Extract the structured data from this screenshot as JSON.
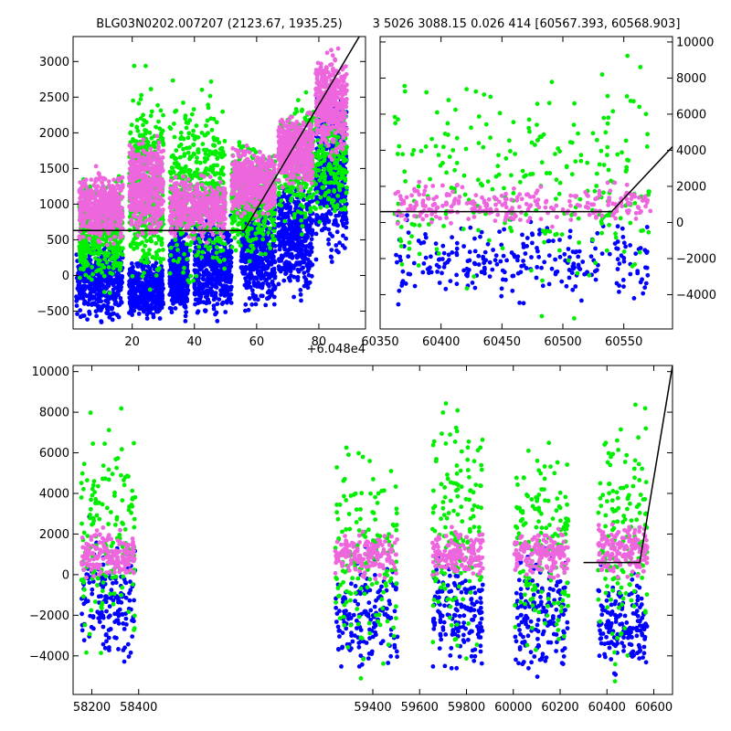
{
  "figure": {
    "title_left": "BLG03N0202.007207 (2123.67, 1935.25)",
    "title_right": "3 5026 3088.15 0.026 414 [60567.393, 60568.903]"
  },
  "colors": {
    "series_blue": "#0000ff",
    "series_green": "#00ee00",
    "series_pink": "#ee66dd",
    "model_line": "#000000"
  },
  "chart_data": [
    {
      "type": "scatter",
      "panel": "top-left",
      "title": "BLG03N0202.007207 (2123.67, 1935.25)",
      "xlim": [
        1,
        95
      ],
      "ylim": [
        -750,
        3350
      ],
      "x_offset_label": "+6.048e4",
      "xticks": [
        20,
        40,
        60,
        80
      ],
      "yticks": [
        -500,
        0,
        500,
        1000,
        1500,
        2000,
        2500,
        3000
      ],
      "series": [
        {
          "color": "blue",
          "clusters": [
            {
              "x": [
                2,
                17
              ],
              "y": [
                -750,
                600
              ]
            },
            {
              "x": [
                19,
                30
              ],
              "y": [
                -750,
                300
              ]
            },
            {
              "x": [
                32,
                38
              ],
              "y": [
                -750,
                900
              ]
            },
            {
              "x": [
                40,
                52
              ],
              "y": [
                -750,
                1000
              ]
            },
            {
              "x": [
                55,
                66
              ],
              "y": [
                -700,
                1300
              ]
            },
            {
              "x": [
                67,
                78
              ],
              "y": [
                -500,
                1600
              ]
            },
            {
              "x": [
                79,
                89
              ],
              "y": [
                0,
                2800
              ]
            }
          ]
        },
        {
          "color": "green",
          "clusters": [
            {
              "x": [
                3,
                17
              ],
              "y": [
                -300,
                1500
              ]
            },
            {
              "x": [
                19,
                30
              ],
              "y": [
                -500,
                3000
              ]
            },
            {
              "x": [
                32,
                50
              ],
              "y": [
                -400,
                2900
              ]
            },
            {
              "x": [
                52,
                66
              ],
              "y": [
                100,
                2000
              ]
            },
            {
              "x": [
                67,
                89
              ],
              "y": [
                500,
                2700
              ]
            }
          ]
        },
        {
          "color": "pink",
          "clusters": [
            {
              "x": [
                3,
                17
              ],
              "y": [
                300,
                1600
              ]
            },
            {
              "x": [
                19,
                30
              ],
              "y": [
                400,
                2100
              ]
            },
            {
              "x": [
                32,
                50
              ],
              "y": [
                400,
                1500
              ]
            },
            {
              "x": [
                52,
                66
              ],
              "y": [
                700,
                1900
              ]
            },
            {
              "x": [
                67,
                78
              ],
              "y": [
                1100,
                2400
              ]
            },
            {
              "x": [
                79,
                89
              ],
              "y": [
                1500,
                3300
              ]
            }
          ]
        }
      ],
      "model_line": {
        "x": [
          1,
          56,
          93
        ],
        "y": [
          630,
          630,
          3350
        ]
      }
    },
    {
      "type": "scatter",
      "panel": "top-right",
      "xlim": [
        60350,
        60590
      ],
      "ylim": [
        -5900,
        10300
      ],
      "xticks": [
        60350,
        60400,
        60450,
        60500,
        60550
      ],
      "yticks": [
        -4000,
        -2000,
        0,
        2000,
        4000,
        6000,
        8000,
        10000
      ],
      "series": [
        {
          "color": "blue",
          "clusters": [
            {
              "x": [
                60362,
                60572
              ],
              "y": [
                -5000,
                800
              ]
            }
          ]
        },
        {
          "color": "green",
          "clusters": [
            {
              "x": [
                60362,
                60572
              ],
              "y": [
                -5800,
                10200
              ]
            }
          ]
        },
        {
          "color": "pink",
          "clusters": [
            {
              "x": [
                60362,
                60572
              ],
              "y": [
                -500,
                2500
              ]
            }
          ]
        }
      ],
      "model_line": {
        "x": [
          60350,
          60540,
          60590
        ],
        "y": [
          600,
          600,
          4200
        ]
      }
    },
    {
      "type": "scatter",
      "panel": "bottom",
      "xlim": [
        58120,
        60680
      ],
      "ylim": [
        -5900,
        10300
      ],
      "xticks": [
        58200,
        58400,
        59400,
        59600,
        59800,
        60000,
        60200,
        60400,
        60600
      ],
      "yticks": [
        -4000,
        -2000,
        0,
        2000,
        4000,
        6000,
        8000,
        10000
      ],
      "series": [
        {
          "color": "blue",
          "clusters": [
            {
              "x": [
                58155,
                58385
              ],
              "y": [
                -5500,
                3000
              ]
            },
            {
              "x": [
                59240,
                59505
              ],
              "y": [
                -5500,
                1500
              ]
            },
            {
              "x": [
                59655,
                59870
              ],
              "y": [
                -5500,
                2000
              ]
            },
            {
              "x": [
                60005,
                60235
              ],
              "y": [
                -5800,
                2000
              ]
            },
            {
              "x": [
                60362,
                60572
              ],
              "y": [
                -5500,
                800
              ]
            }
          ]
        },
        {
          "color": "green",
          "clusters": [
            {
              "x": [
                58155,
                58385
              ],
              "y": [
                -5800,
                9000
              ]
            },
            {
              "x": [
                59240,
                59505
              ],
              "y": [
                -5800,
                7500
              ]
            },
            {
              "x": [
                59655,
                59870
              ],
              "y": [
                -5800,
                10000
              ]
            },
            {
              "x": [
                60005,
                60235
              ],
              "y": [
                -5800,
                8500
              ]
            },
            {
              "x": [
                60362,
                60572
              ],
              "y": [
                -5800,
                10200
              ]
            }
          ]
        },
        {
          "color": "pink",
          "clusters": [
            {
              "x": [
                58155,
                58385
              ],
              "y": [
                -500,
                2500
              ]
            },
            {
              "x": [
                59240,
                59505
              ],
              "y": [
                -500,
                2500
              ]
            },
            {
              "x": [
                59655,
                59870
              ],
              "y": [
                -500,
                2500
              ]
            },
            {
              "x": [
                60005,
                60235
              ],
              "y": [
                -500,
                2500
              ]
            },
            {
              "x": [
                60362,
                60572
              ],
              "y": [
                -500,
                3000
              ]
            }
          ]
        }
      ],
      "model_line": {
        "x": [
          60300,
          60540,
          60680
        ],
        "y": [
          600,
          600,
          10300
        ]
      }
    }
  ]
}
